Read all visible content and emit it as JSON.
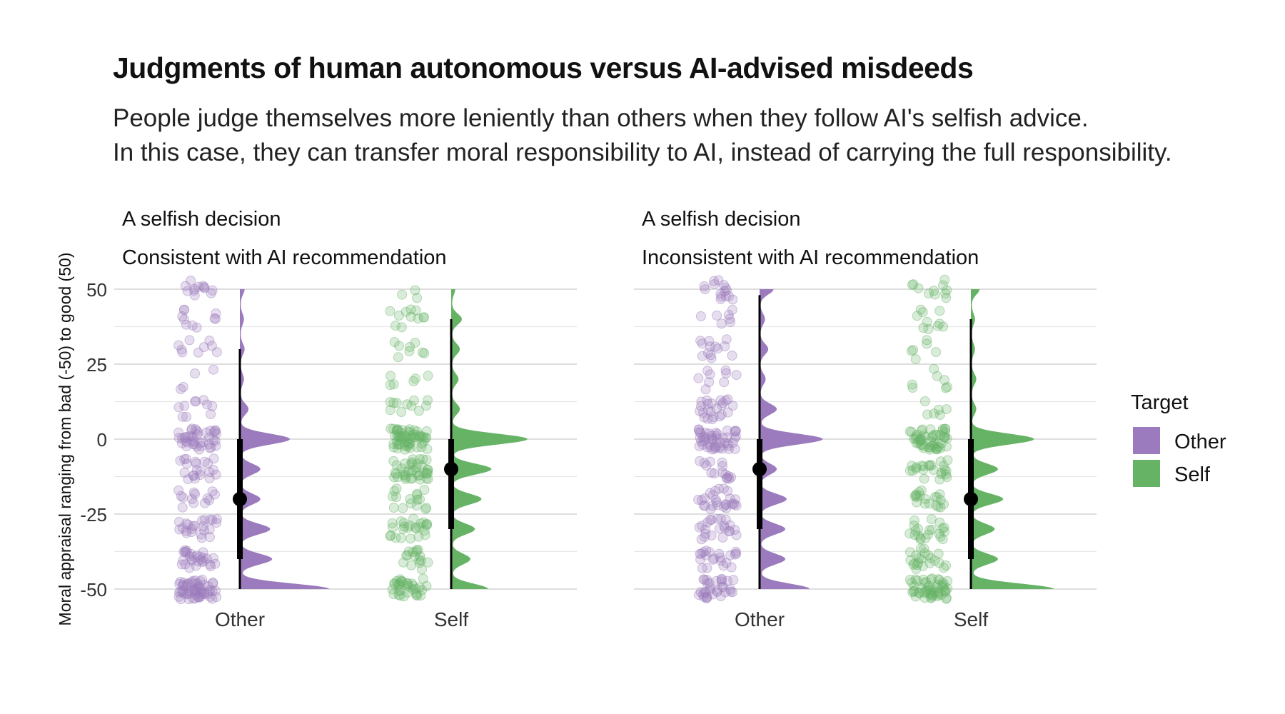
{
  "title": "Judgments of human autonomous versus AI-advised misdeeds",
  "subtitle_lines": [
    "People judge themselves more leniently than others when they follow AI's selfish advice.",
    "In this case, they can transfer moral responsibility to AI, instead of carrying the full responsibility."
  ],
  "colors": {
    "Other": "#9b7bbd",
    "Self": "#66b366",
    "grid": "#d9d9d9",
    "summary": "#000000"
  },
  "chart_data": {
    "type": "raincloud",
    "ylabel": "Moral appraisal ranging from bad (-50) to good (50)",
    "ylim": [
      -50,
      50
    ],
    "yticks": [
      50,
      25,
      0,
      -25,
      -50
    ],
    "ytick_labels": [
      "50",
      "25",
      "0",
      "-25",
      "-50"
    ],
    "grid": true,
    "legend": {
      "title": "Target",
      "position": "right",
      "items": [
        "Other",
        "Self"
      ]
    },
    "facets": [
      {
        "strip": [
          "A selfish decision",
          "Consistent with AI recommendation"
        ],
        "groups": [
          {
            "name": "Other",
            "median": -20,
            "q1": -40,
            "q3": 0,
            "whisker_low": -50,
            "whisker_high": 30,
            "density_peaks": [
              [
                50,
                0.06
              ],
              [
                40,
                0.05
              ],
              [
                30,
                0.06
              ],
              [
                20,
                0.05
              ],
              [
                10,
                0.12
              ],
              [
                0,
                0.75
              ],
              [
                -10,
                0.3
              ],
              [
                -20,
                0.3
              ],
              [
                -30,
                0.45
              ],
              [
                -40,
                0.48
              ],
              [
                -50,
                1.35
              ]
            ]
          },
          {
            "name": "Self",
            "median": -10,
            "q1": -30,
            "q3": 0,
            "whisker_low": -50,
            "whisker_high": 40,
            "density_peaks": [
              [
                50,
                0.05
              ],
              [
                40,
                0.15
              ],
              [
                30,
                0.12
              ],
              [
                20,
                0.1
              ],
              [
                10,
                0.12
              ],
              [
                0,
                1.15
              ],
              [
                -10,
                0.6
              ],
              [
                -20,
                0.45
              ],
              [
                -30,
                0.35
              ],
              [
                -40,
                0.28
              ],
              [
                -50,
                0.55
              ]
            ]
          }
        ]
      },
      {
        "strip": [
          "A selfish decision",
          "Inconsistent with AI recommendation"
        ],
        "groups": [
          {
            "name": "Other",
            "median": -10,
            "q1": -30,
            "q3": 0,
            "whisker_low": -50,
            "whisker_high": 48,
            "density_peaks": [
              [
                50,
                0.2
              ],
              [
                40,
                0.07
              ],
              [
                30,
                0.12
              ],
              [
                20,
                0.08
              ],
              [
                10,
                0.25
              ],
              [
                0,
                0.95
              ],
              [
                -10,
                0.25
              ],
              [
                -20,
                0.4
              ],
              [
                -30,
                0.38
              ],
              [
                -40,
                0.38
              ],
              [
                -50,
                0.75
              ]
            ]
          },
          {
            "name": "Self",
            "median": -20,
            "q1": -40,
            "q3": 0,
            "whisker_low": -50,
            "whisker_high": 40,
            "density_peaks": [
              [
                50,
                0.12
              ],
              [
                40,
                0.05
              ],
              [
                30,
                0.05
              ],
              [
                20,
                0.07
              ],
              [
                10,
                0.07
              ],
              [
                0,
                0.95
              ],
              [
                -10,
                0.4
              ],
              [
                -20,
                0.48
              ],
              [
                -30,
                0.35
              ],
              [
                -40,
                0.4
              ],
              [
                -50,
                1.25
              ]
            ]
          }
        ]
      }
    ]
  }
}
